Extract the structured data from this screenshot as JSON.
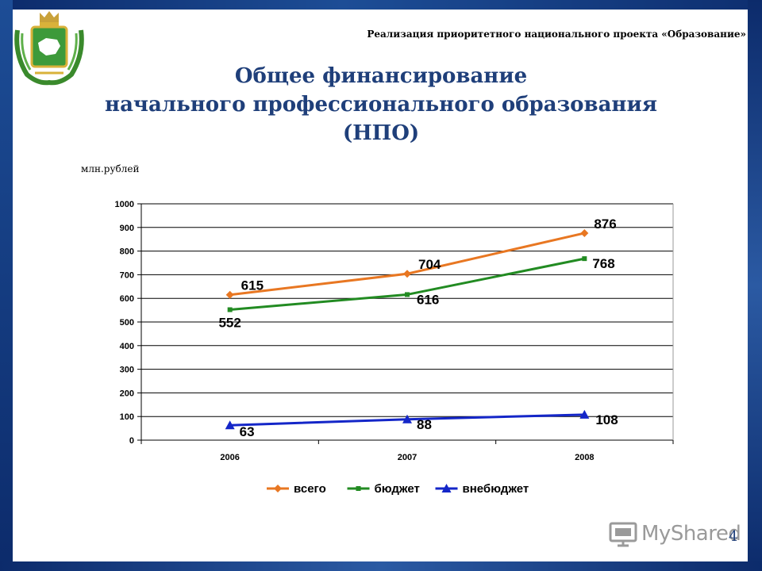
{
  "header": {
    "note": "Реализация приоритетного национального проекта «Образование»"
  },
  "title": {
    "line1": "Общее финансирование",
    "line2": "начального профессионального образования",
    "line3": "(НПО)"
  },
  "unit_label": "млн.рублей",
  "chart_data": {
    "type": "line",
    "categories": [
      "2006",
      "2007",
      "2008"
    ],
    "ylim": [
      0,
      1000
    ],
    "yticks": [
      "0",
      "100",
      "200",
      "300",
      "400",
      "500",
      "600",
      "700",
      "800",
      "900",
      "1000"
    ],
    "grid": true,
    "legend_position": "bottom",
    "series": [
      {
        "name": "всего",
        "values": [
          615,
          704,
          876
        ],
        "labels": [
          "615",
          "704",
          "876"
        ],
        "color": "#e87722",
        "marker": "diamond"
      },
      {
        "name": "бюджет",
        "values": [
          552,
          616,
          768
        ],
        "labels": [
          "552",
          "616",
          "768"
        ],
        "color": "#228b22",
        "marker": "square"
      },
      {
        "name": "внебюджет",
        "values": [
          63,
          88,
          108
        ],
        "labels": [
          "63",
          "88",
          "108"
        ],
        "color": "#1426c8",
        "marker": "triangle"
      }
    ]
  },
  "footer": {
    "logo_text": "MyShared",
    "page_number": "4"
  },
  "colors": {
    "frame": "#0c2b6b",
    "title": "#1f3f7a"
  }
}
